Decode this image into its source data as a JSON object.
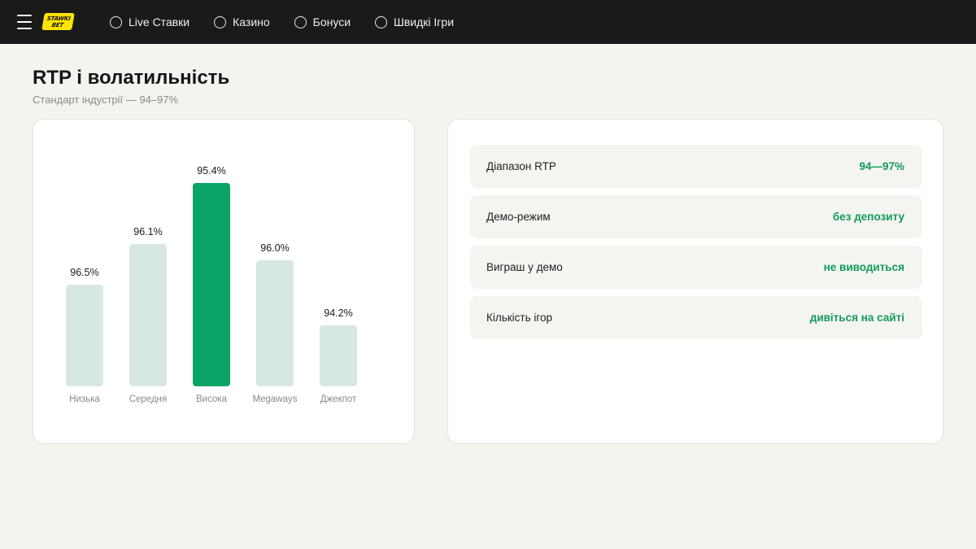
{
  "header": {
    "logo_line1": "STAWKI",
    "logo_line2": "BET",
    "nav": [
      {
        "label": "Live Ставки",
        "icon": "circle-icon"
      },
      {
        "label": "Казино",
        "icon": "circle-icon"
      },
      {
        "label": "Бонуси",
        "icon": "circle-icon"
      },
      {
        "label": "Швидкі Ігри",
        "icon": "circle-icon"
      }
    ]
  },
  "page": {
    "title": "RTP і волатильність",
    "subtitle": "Стандарт індустрії — 94–97%"
  },
  "colors": {
    "bar_default": "#d7e8e0",
    "bar_highlight": "#0aa468",
    "accent_text": "#149a5c"
  },
  "chart_data": {
    "type": "bar",
    "categories": [
      "Низька",
      "Середня",
      "Висока",
      "Megaways",
      "Джекпот"
    ],
    "values": [
      96.5,
      96.1,
      95.4,
      96.0,
      94.2
    ],
    "value_labels": [
      "96.5%",
      "96.1%",
      "95.4%",
      "96.0%",
      "94.2%"
    ],
    "bar_heights_relative": [
      0.5,
      0.7,
      1.0,
      0.62,
      0.3
    ],
    "highlighted_index": 2,
    "grid": false,
    "title": "",
    "xlabel": "",
    "ylabel": ""
  },
  "info": [
    {
      "label": "Діапазон RTP",
      "value": "94—97%"
    },
    {
      "label": "Демо-режим",
      "value": "без депозиту"
    },
    {
      "label": "Виграш у демо",
      "value": "не виводиться"
    },
    {
      "label": "Кількість ігор",
      "value": "дивіться на сайті"
    }
  ]
}
